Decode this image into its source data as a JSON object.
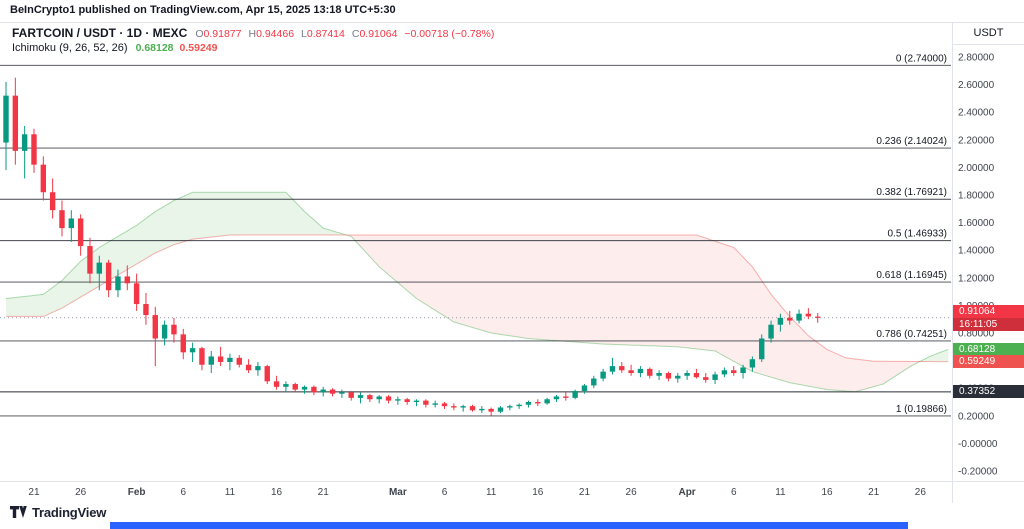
{
  "header": {
    "publisher_line": "BeInCrypto1 published on TradingView.com, Apr 15, 2025 13:18 UTC+5:30"
  },
  "legend": {
    "symbol": "FARTCOIN / USDT · 1D · MEXC",
    "ohlc": {
      "o_label": "O",
      "o": "0.91877",
      "h_label": "H",
      "h": "0.94466",
      "l_label": "L",
      "l": "0.87414",
      "c_label": "C",
      "c": "0.91064",
      "change": "−0.00718 (−0.78%)"
    },
    "indicator": {
      "name": "Ichimoku (9, 26, 52, 26)",
      "lead_a_value": "0.68128",
      "lead_b_value": "0.59249"
    }
  },
  "price_scale": {
    "currency": "USDT",
    "last_price": {
      "text": "0.91064",
      "value": 0.91064,
      "countdown": "16:11:05"
    },
    "lead_a_label": {
      "text": "0.68128",
      "value": 0.68128
    },
    "lead_b_label": {
      "text": "0.59249",
      "value": 0.59249
    },
    "hline_label": {
      "text": "0.37352",
      "value": 0.37352
    }
  },
  "logo": {
    "brand": "TradingView"
  },
  "colors": {
    "up": "#089981",
    "down": "#f23645",
    "cloud_up": "rgba(76,175,80,0.13)",
    "cloud_down": "rgba(239,83,80,0.10)",
    "lead_a": "#4caf50",
    "lead_b": "#ef5350",
    "fib_line": "#20242e",
    "hline": "#2a2e39",
    "last_price_line": "#9598a1",
    "separator": "#e0e3eb",
    "axis_text": "#3f434c",
    "accent_blue": "#2962ff"
  },
  "chart_data": {
    "type": "candlestick",
    "symbol": "FARTCOIN/USDT",
    "interval": "1D",
    "exchange": "MEXC",
    "ylim": [
      -0.27,
      3.05
    ],
    "grid": false,
    "current_price": 0.91064,
    "candles_note": "arrays are [date, open, high, low, close]",
    "candles": [
      [
        "Jan 18",
        2.18,
        2.62,
        1.98,
        2.52
      ],
      [
        "Jan 19",
        2.52,
        2.65,
        2.02,
        2.12
      ],
      [
        "Jan 20",
        2.12,
        2.3,
        1.92,
        2.24
      ],
      [
        "Jan 21",
        2.24,
        2.28,
        1.96,
        2.02
      ],
      [
        "Jan 22",
        2.02,
        2.08,
        1.76,
        1.82
      ],
      [
        "Jan 23",
        1.82,
        1.92,
        1.63,
        1.69
      ],
      [
        "Jan 24",
        1.69,
        1.76,
        1.5,
        1.56
      ],
      [
        "Jan 25",
        1.56,
        1.69,
        1.46,
        1.63
      ],
      [
        "Jan 26",
        1.63,
        1.66,
        1.36,
        1.43
      ],
      [
        "Jan 27",
        1.43,
        1.49,
        1.16,
        1.23
      ],
      [
        "Jan 28",
        1.23,
        1.36,
        1.11,
        1.31
      ],
      [
        "Jan 29",
        1.31,
        1.33,
        1.06,
        1.11
      ],
      [
        "Jan 30",
        1.11,
        1.26,
        1.06,
        1.21
      ],
      [
        "Jan 31",
        1.21,
        1.29,
        1.11,
        1.16
      ],
      [
        "Feb 1",
        1.16,
        1.23,
        0.96,
        1.01
      ],
      [
        "Feb 2",
        1.01,
        1.09,
        0.86,
        0.93
      ],
      [
        "Feb 3",
        0.93,
        0.99,
        0.56,
        0.76
      ],
      [
        "Feb 4",
        0.76,
        0.89,
        0.71,
        0.86
      ],
      [
        "Feb 5",
        0.86,
        0.91,
        0.73,
        0.79
      ],
      [
        "Feb 6",
        0.79,
        0.83,
        0.61,
        0.66
      ],
      [
        "Feb 7",
        0.66,
        0.73,
        0.59,
        0.69
      ],
      [
        "Feb 8",
        0.69,
        0.7,
        0.53,
        0.57
      ],
      [
        "Feb 9",
        0.57,
        0.67,
        0.51,
        0.63
      ],
      [
        "Feb 10",
        0.63,
        0.7,
        0.56,
        0.59
      ],
      [
        "Feb 11",
        0.59,
        0.65,
        0.53,
        0.62
      ],
      [
        "Feb 12",
        0.62,
        0.64,
        0.55,
        0.57
      ],
      [
        "Feb 13",
        0.57,
        0.61,
        0.51,
        0.53
      ],
      [
        "Feb 14",
        0.53,
        0.59,
        0.49,
        0.56
      ],
      [
        "Feb 15",
        0.56,
        0.57,
        0.43,
        0.45
      ],
      [
        "Feb 16",
        0.45,
        0.49,
        0.39,
        0.41
      ],
      [
        "Feb 17",
        0.41,
        0.45,
        0.37,
        0.43
      ],
      [
        "Feb 18",
        0.43,
        0.44,
        0.37,
        0.39
      ],
      [
        "Feb 19",
        0.39,
        0.42,
        0.36,
        0.41
      ],
      [
        "Feb 20",
        0.41,
        0.42,
        0.35,
        0.37
      ],
      [
        "Feb 21",
        0.37,
        0.41,
        0.34,
        0.39
      ],
      [
        "Feb 22",
        0.39,
        0.4,
        0.34,
        0.36
      ],
      [
        "Feb 23",
        0.36,
        0.39,
        0.33,
        0.37
      ],
      [
        "Feb 24",
        0.37,
        0.38,
        0.31,
        0.33
      ],
      [
        "Feb 25",
        0.33,
        0.37,
        0.29,
        0.35
      ],
      [
        "Feb 26",
        0.35,
        0.36,
        0.3,
        0.32
      ],
      [
        "Feb 27",
        0.32,
        0.35,
        0.29,
        0.34
      ],
      [
        "Feb 28",
        0.34,
        0.35,
        0.29,
        0.31
      ],
      [
        "Mar 1",
        0.31,
        0.34,
        0.28,
        0.32
      ],
      [
        "Mar 2",
        0.32,
        0.33,
        0.28,
        0.3
      ],
      [
        "Mar 3",
        0.3,
        0.32,
        0.27,
        0.31
      ],
      [
        "Mar 4",
        0.31,
        0.32,
        0.26,
        0.28
      ],
      [
        "Mar 5",
        0.28,
        0.31,
        0.26,
        0.29
      ],
      [
        "Mar 6",
        0.29,
        0.3,
        0.25,
        0.27
      ],
      [
        "Mar 7",
        0.27,
        0.29,
        0.24,
        0.26
      ],
      [
        "Mar 8",
        0.26,
        0.28,
        0.23,
        0.27
      ],
      [
        "Mar 9",
        0.27,
        0.28,
        0.23,
        0.24
      ],
      [
        "Mar 10",
        0.24,
        0.27,
        0.22,
        0.25
      ],
      [
        "Mar 11",
        0.25,
        0.26,
        0.2,
        0.23
      ],
      [
        "Mar 12",
        0.23,
        0.27,
        0.22,
        0.26
      ],
      [
        "Mar 13",
        0.26,
        0.28,
        0.24,
        0.27
      ],
      [
        "Mar 14",
        0.27,
        0.29,
        0.25,
        0.28
      ],
      [
        "Mar 15",
        0.28,
        0.31,
        0.26,
        0.3
      ],
      [
        "Mar 16",
        0.3,
        0.32,
        0.27,
        0.29
      ],
      [
        "Mar 17",
        0.29,
        0.33,
        0.28,
        0.32
      ],
      [
        "Mar 18",
        0.32,
        0.35,
        0.3,
        0.34
      ],
      [
        "Mar 19",
        0.34,
        0.37,
        0.31,
        0.33
      ],
      [
        "Mar 20",
        0.33,
        0.39,
        0.32,
        0.38
      ],
      [
        "Mar 21",
        0.38,
        0.43,
        0.36,
        0.42
      ],
      [
        "Mar 22",
        0.42,
        0.49,
        0.4,
        0.47
      ],
      [
        "Mar 23",
        0.47,
        0.54,
        0.45,
        0.52
      ],
      [
        "Mar 24",
        0.52,
        0.62,
        0.5,
        0.56
      ],
      [
        "Mar 25",
        0.56,
        0.59,
        0.51,
        0.53
      ],
      [
        "Mar 26",
        0.53,
        0.57,
        0.49,
        0.51
      ],
      [
        "Mar 27",
        0.51,
        0.56,
        0.48,
        0.54
      ],
      [
        "Mar 28",
        0.54,
        0.55,
        0.47,
        0.49
      ],
      [
        "Mar 29",
        0.49,
        0.53,
        0.46,
        0.51
      ],
      [
        "Mar 30",
        0.51,
        0.52,
        0.45,
        0.47
      ],
      [
        "Mar 31",
        0.47,
        0.51,
        0.44,
        0.49
      ],
      [
        "Apr 1",
        0.49,
        0.53,
        0.46,
        0.51
      ],
      [
        "Apr 2",
        0.51,
        0.54,
        0.47,
        0.48
      ],
      [
        "Apr 3",
        0.48,
        0.51,
        0.44,
        0.46
      ],
      [
        "Apr 4",
        0.46,
        0.52,
        0.43,
        0.5
      ],
      [
        "Apr 5",
        0.5,
        0.55,
        0.48,
        0.53
      ],
      [
        "Apr 6",
        0.53,
        0.56,
        0.49,
        0.51
      ],
      [
        "Apr 7",
        0.51,
        0.57,
        0.47,
        0.55
      ],
      [
        "Apr 8",
        0.55,
        0.63,
        0.52,
        0.61
      ],
      [
        "Apr 9",
        0.61,
        0.79,
        0.59,
        0.76
      ],
      [
        "Apr 10",
        0.76,
        0.89,
        0.73,
        0.86
      ],
      [
        "Apr 11",
        0.86,
        0.94,
        0.81,
        0.91
      ],
      [
        "Apr 12",
        0.91,
        0.96,
        0.86,
        0.89
      ],
      [
        "Apr 13",
        0.89,
        0.97,
        0.87,
        0.94
      ],
      [
        "Apr 14",
        0.94,
        0.98,
        0.9,
        0.92
      ],
      [
        "Apr 15",
        0.91877,
        0.94466,
        0.87414,
        0.91064
      ]
    ],
    "ichimoku_cloud": {
      "note": "points are [bar-index, price]; cloud projected beyond last candle",
      "lead_a": [
        [
          0,
          1.05
        ],
        [
          4,
          1.08
        ],
        [
          6,
          1.18
        ],
        [
          8,
          1.32
        ],
        [
          10,
          1.42
        ],
        [
          12,
          1.5
        ],
        [
          14,
          1.58
        ],
        [
          16,
          1.68
        ],
        [
          18,
          1.76
        ],
        [
          20,
          1.82
        ],
        [
          30,
          1.82
        ],
        [
          32,
          1.68
        ],
        [
          34,
          1.56
        ],
        [
          37,
          1.5
        ],
        [
          40,
          1.28
        ],
        [
          44,
          1.05
        ],
        [
          48,
          0.88
        ],
        [
          52,
          0.8
        ],
        [
          56,
          0.76
        ],
        [
          60,
          0.74
        ],
        [
          64,
          0.72
        ],
        [
          68,
          0.71
        ],
        [
          72,
          0.7
        ],
        [
          76,
          0.67
        ],
        [
          80,
          0.52
        ],
        [
          84,
          0.44
        ],
        [
          88,
          0.39
        ],
        [
          91,
          0.374
        ],
        [
          94,
          0.43
        ],
        [
          97,
          0.56
        ],
        [
          99,
          0.63
        ],
        [
          101,
          0.68128
        ]
      ],
      "lead_b": [
        [
          0,
          0.92
        ],
        [
          4,
          0.92
        ],
        [
          6,
          0.98
        ],
        [
          8,
          1.06
        ],
        [
          10,
          1.14
        ],
        [
          12,
          1.22
        ],
        [
          14,
          1.3
        ],
        [
          16,
          1.38
        ],
        [
          18,
          1.44
        ],
        [
          20,
          1.48
        ],
        [
          24,
          1.51
        ],
        [
          74,
          1.51
        ],
        [
          78,
          1.42
        ],
        [
          80,
          1.28
        ],
        [
          82,
          1.08
        ],
        [
          84,
          0.92
        ],
        [
          86,
          0.78
        ],
        [
          88,
          0.68
        ],
        [
          90,
          0.62
        ],
        [
          93,
          0.595
        ],
        [
          101,
          0.59249
        ]
      ]
    },
    "fib_levels": [
      {
        "label": "0 (2.74000)",
        "value": 2.74
      },
      {
        "label": "0.236 (2.14024)",
        "value": 2.14024
      },
      {
        "label": "0.382 (1.76921)",
        "value": 1.76921
      },
      {
        "label": "0.5 (1.46933)",
        "value": 1.46933
      },
      {
        "label": "0.618 (1.16945)",
        "value": 1.16945
      },
      {
        "label": "0.786 (0.74251)",
        "value": 0.74251
      },
      {
        "label": "1 (0.19866)",
        "value": 0.19866
      }
    ],
    "hline": {
      "value": 0.37352,
      "label": "0.37352"
    },
    "price_ticks": [
      [
        "2.80000",
        2.8
      ],
      [
        "2.60000",
        2.6
      ],
      [
        "2.40000",
        2.4
      ],
      [
        "2.20000",
        2.2
      ],
      [
        "2.00000",
        2.0
      ],
      [
        "1.80000",
        1.8
      ],
      [
        "1.60000",
        1.6
      ],
      [
        "1.40000",
        1.4
      ],
      [
        "1.20000",
        1.2
      ],
      [
        "1.00000",
        1.0
      ],
      [
        "0.80000",
        0.8
      ],
      [
        "0.60000",
        0.6
      ],
      [
        "0.40000",
        0.4
      ],
      [
        "0.20000",
        0.2
      ],
      [
        "-0.00000",
        0.0
      ],
      [
        "-0.20000",
        -0.2
      ]
    ],
    "time_ticks": [
      [
        "21",
        3
      ],
      [
        "26",
        8
      ],
      [
        "Feb",
        14
      ],
      [
        "6",
        19
      ],
      [
        "11",
        24
      ],
      [
        "16",
        29
      ],
      [
        "21",
        34
      ],
      [
        "Mar",
        42
      ],
      [
        "6",
        47
      ],
      [
        "11",
        52
      ],
      [
        "16",
        57
      ],
      [
        "21",
        62
      ],
      [
        "26",
        67
      ],
      [
        "Apr",
        73
      ],
      [
        "6",
        78
      ],
      [
        "11",
        83
      ],
      [
        "16",
        88
      ],
      [
        "21",
        93
      ],
      [
        "26",
        98
      ]
    ]
  }
}
